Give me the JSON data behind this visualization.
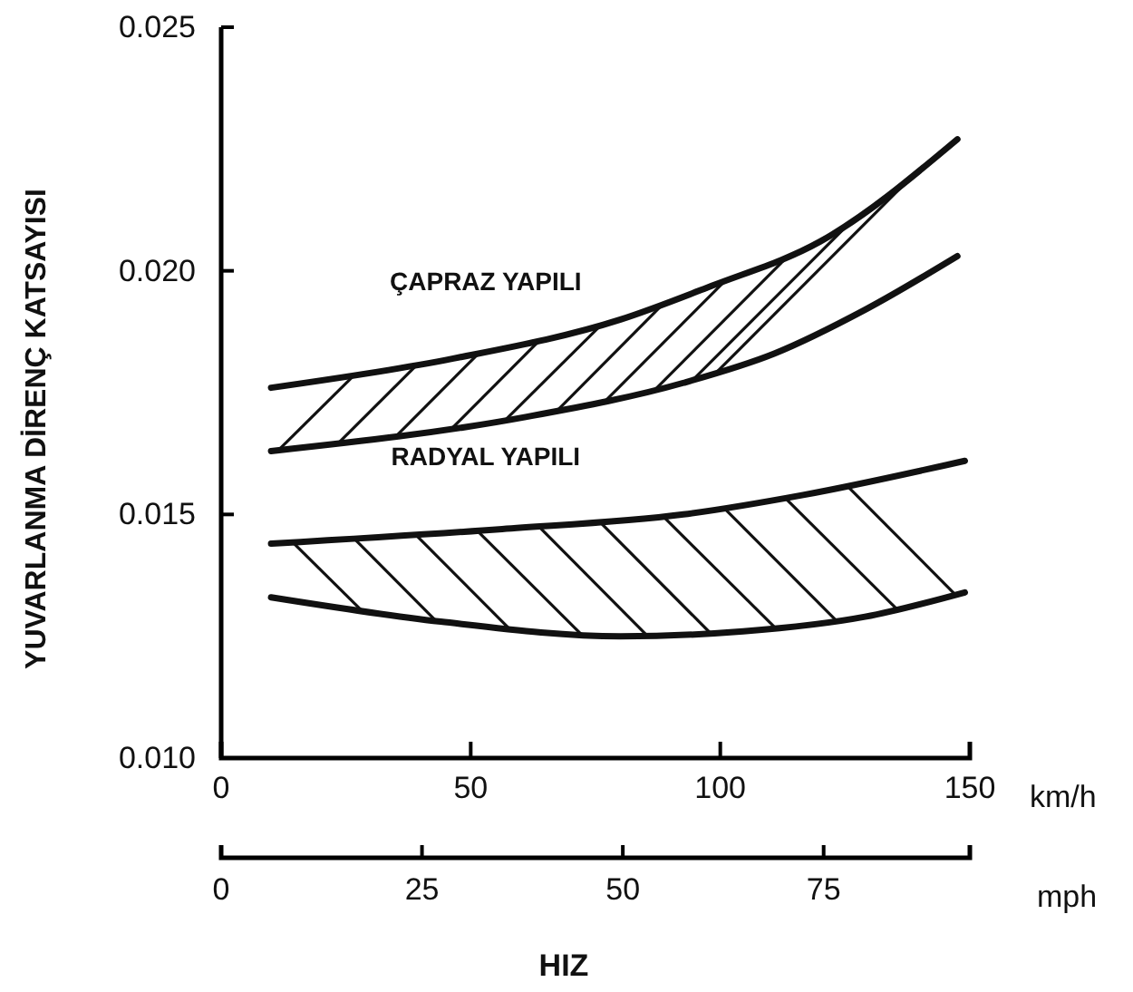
{
  "chart_data": {
    "type": "line",
    "xlabel": "HIZ",
    "ylabel": "YUVARLANMA DİRENÇ KATSAYISI",
    "x2label": "mph",
    "xlim": [
      0,
      150
    ],
    "xticks": [
      0,
      50,
      100,
      150
    ],
    "x2lim": [
      0,
      93.2
    ],
    "x2ticks": [
      0,
      25,
      50,
      75
    ],
    "ylim": [
      0.01,
      0.025
    ],
    "yticks": [
      {
        "value": 0.01,
        "label": "0.010"
      },
      0.015,
      {
        "value": 0.02,
        "label": "0.020"
      },
      0.025
    ],
    "series": [
      {
        "color": "#111111",
        "x": [
          10,
          46.5,
          80,
          98.5,
          120,
          147.5
        ],
        "values": [
          0.0176,
          0.0182,
          0.019,
          0.0197,
          0.0206,
          0.0227
        ]
      },
      {
        "color": "#111111",
        "x": [
          10,
          61,
          92.6,
          110.8,
          129,
          147.5
        ],
        "values": [
          0.0163,
          0.017,
          0.0177,
          0.0183,
          0.0192,
          0.0203
        ]
      },
      {
        "color": "#111111",
        "x": [
          10,
          56.3,
          92.6,
          116.6,
          149
        ],
        "values": [
          0.0144,
          0.0147,
          0.015,
          0.0154,
          0.0161
        ]
      },
      {
        "color": "#111111",
        "x": [
          10,
          44,
          80,
          104.6,
          129,
          149
        ],
        "values": [
          0.0133,
          0.0128,
          0.0125,
          0.0126,
          0.0129,
          0.0134
        ]
      }
    ],
    "annotations": [
      {
        "text": "ÇAPRAZ YAPILI",
        "x": 53,
        "y": 0.0183
      },
      {
        "text": "RADYAL YAPILI",
        "x": 53,
        "y": 0.0147
      },
      "km/h"
    ],
    "line_style": "solid",
    "marker": "none",
    "grid": false
  }
}
